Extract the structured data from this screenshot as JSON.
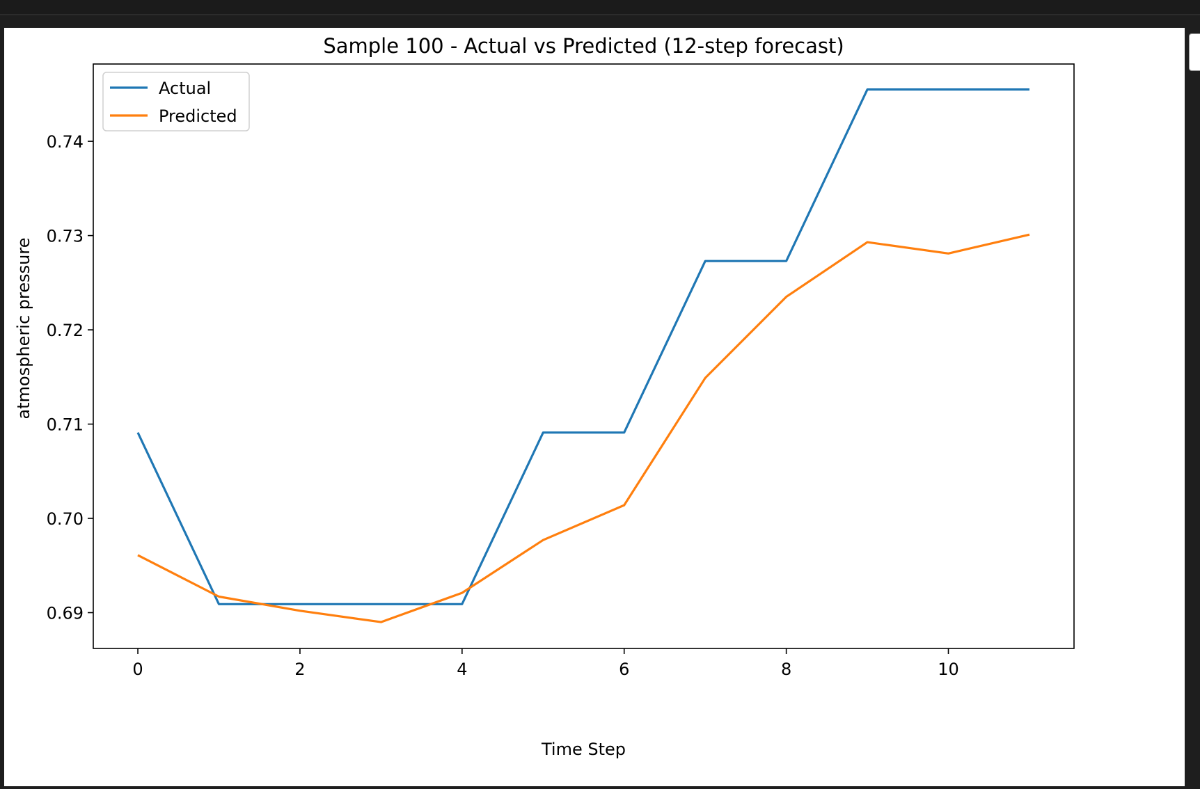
{
  "colors": {
    "actual": "#1f77b4",
    "predicted": "#ff7f0e",
    "axis": "#000000",
    "background": "#ffffff"
  },
  "chart_data": {
    "type": "line",
    "title": "Sample 100 - Actual vs Predicted (12-step forecast)",
    "xlabel": "Time Step",
    "ylabel": "atmospheric pressure",
    "x": [
      0,
      1,
      2,
      3,
      4,
      5,
      6,
      7,
      8,
      9,
      10,
      11
    ],
    "xlim": [
      -0.55,
      11.55
    ],
    "ylim": [
      0.6862,
      0.7482
    ],
    "xticks": [
      0,
      2,
      4,
      6,
      8,
      10
    ],
    "yticks": [
      0.69,
      0.7,
      0.71,
      0.72,
      0.73,
      0.74
    ],
    "ytick_labels": [
      "0.69",
      "0.70",
      "0.71",
      "0.72",
      "0.73",
      "0.74"
    ],
    "grid": false,
    "legend": "top-left",
    "series": [
      {
        "name": "Actual",
        "values": [
          0.7091,
          0.6909,
          0.6909,
          0.6909,
          0.6909,
          0.7091,
          0.7091,
          0.7273,
          0.7273,
          0.7455,
          0.7455,
          0.7455
        ]
      },
      {
        "name": "Predicted",
        "values": [
          0.6961,
          0.6917,
          0.6902,
          0.689,
          0.6921,
          0.6977,
          0.7014,
          0.7149,
          0.7235,
          0.7293,
          0.7281,
          0.7301
        ]
      }
    ]
  }
}
